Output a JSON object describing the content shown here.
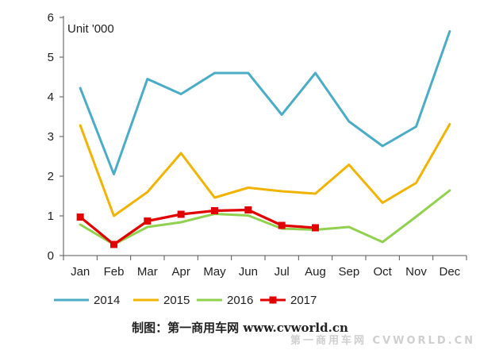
{
  "chart_data": {
    "type": "line",
    "unit_label": "Unit '000",
    "categories": [
      "Jan",
      "Feb",
      "Mar",
      "Apr",
      "May",
      "Jun",
      "Jul",
      "Aug",
      "Sep",
      "Oct",
      "Nov",
      "Dec"
    ],
    "ylim": [
      0,
      6
    ],
    "yticks": [
      0,
      1,
      2,
      3,
      4,
      5,
      6
    ],
    "grid": false,
    "legend_position": "bottom",
    "series": [
      {
        "name": "2014",
        "color": "#4bacc6",
        "marker": "none",
        "values": [
          4.22,
          2.05,
          4.45,
          4.07,
          4.6,
          4.6,
          3.55,
          4.6,
          3.38,
          2.76,
          3.25,
          5.65
        ]
      },
      {
        "name": "2015",
        "color": "#f0b400",
        "marker": "none",
        "values": [
          3.28,
          1.0,
          1.6,
          2.58,
          1.46,
          1.71,
          1.62,
          1.56,
          2.29,
          1.33,
          1.83,
          3.31
        ]
      },
      {
        "name": "2016",
        "color": "#92d050",
        "marker": "none",
        "values": [
          0.78,
          0.28,
          0.72,
          0.84,
          1.05,
          1.01,
          0.68,
          0.65,
          0.72,
          0.34,
          0.98,
          1.64
        ]
      },
      {
        "name": "2017",
        "color": "#e00000",
        "marker": "square",
        "values": [
          0.97,
          0.28,
          0.87,
          1.04,
          1.13,
          1.15,
          0.76,
          0.7,
          null,
          null,
          null,
          null
        ]
      }
    ]
  },
  "credit": "制图：第一商用车网 www.cvworld.cn",
  "watermark": "第一商用车网 CVWORLD.CN"
}
